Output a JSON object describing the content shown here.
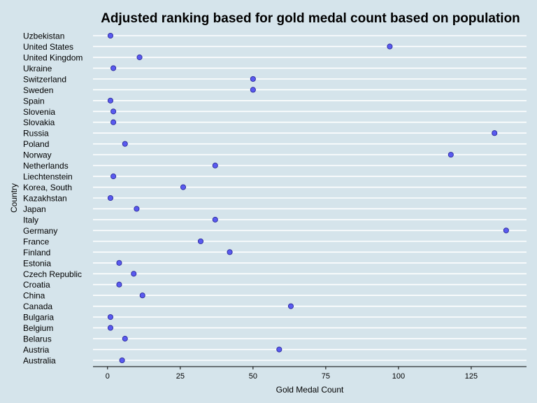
{
  "chart_data": {
    "type": "scatter",
    "title": "Adjusted ranking based for gold medal count based on population",
    "xlabel": "Gold Medal Count",
    "ylabel": "Country",
    "xlim": [
      -5,
      144
    ],
    "xticks": [
      0,
      25,
      50,
      75,
      100,
      125
    ],
    "xtick_labels": [
      "0",
      "25",
      "50",
      "75",
      "100",
      "125"
    ],
    "grid": "horizontal",
    "point_color": "#5a5af0",
    "categories": [
      "Uzbekistan",
      "United States",
      "United Kingdom",
      "Ukraine",
      "Switzerland",
      "Sweden",
      "Spain",
      "Slovenia",
      "Slovakia",
      "Russia",
      "Poland",
      "Norway",
      "Netherlands",
      "Liechtenstein",
      "Korea, South",
      "Kazakhstan",
      "Japan",
      "Italy",
      "Germany",
      "France",
      "Finland",
      "Estonia",
      "Czech Republic",
      "Croatia",
      "China",
      "Canada",
      "Bulgaria",
      "Belgium",
      "Belarus",
      "Austria",
      "Australia"
    ],
    "values": [
      1,
      97,
      11,
      2,
      50,
      50,
      1,
      2,
      2,
      133,
      6,
      118,
      37,
      2,
      26,
      1,
      10,
      37,
      137,
      32,
      42,
      4,
      9,
      4,
      12,
      63,
      1,
      1,
      6,
      59,
      5
    ]
  }
}
